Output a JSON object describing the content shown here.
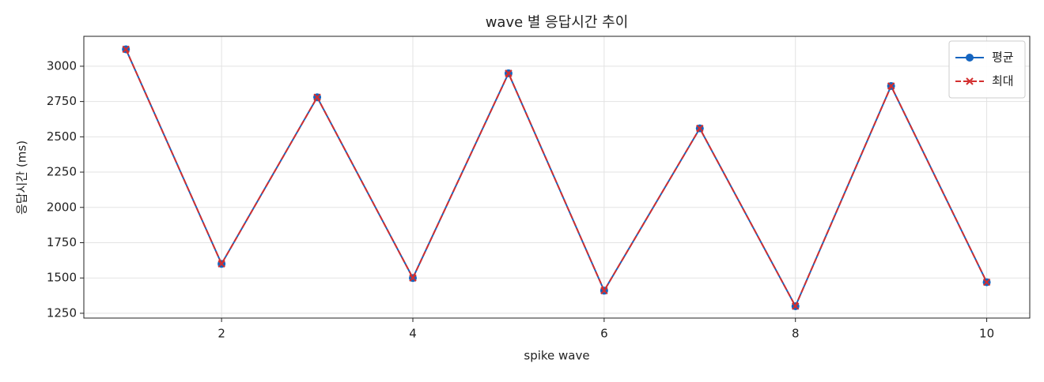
{
  "chart_data": {
    "type": "line",
    "title": "wave 별 응답시간 추이",
    "x_label": "spike wave",
    "y_label": "응답시간 (ms)",
    "x": [
      1,
      2,
      3,
      4,
      5,
      6,
      7,
      8,
      9,
      10
    ],
    "series": [
      {
        "name": "평균",
        "color": "#1565c0",
        "marker": "o",
        "dash": false,
        "values": [
          3120,
          1600,
          2780,
          1500,
          2950,
          1410,
          2560,
          1300,
          2860,
          1470
        ]
      },
      {
        "name": "최대",
        "color": "#d32f2f",
        "marker": "x",
        "dash": true,
        "values": [
          3120,
          1600,
          2780,
          1500,
          2950,
          1410,
          2560,
          1300,
          2860,
          1470
        ]
      }
    ],
    "xlim": [
      0.56,
      10.45
    ],
    "ylim": [
      1216,
      3212
    ],
    "xticks": [
      2,
      4,
      6,
      8,
      10
    ],
    "yticks": [
      1250,
      1500,
      1750,
      2000,
      2250,
      2500,
      2750,
      3000
    ],
    "grid": true,
    "legend": "upper right"
  }
}
